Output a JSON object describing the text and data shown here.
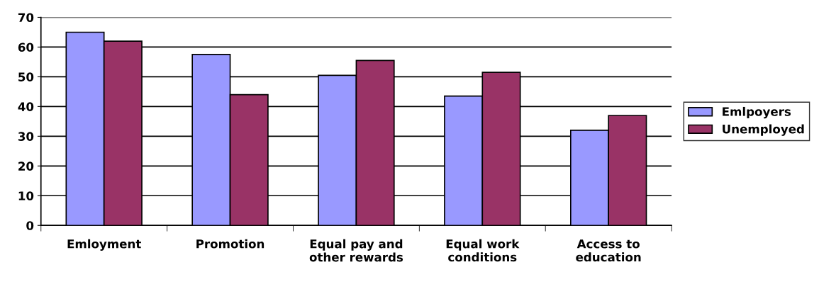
{
  "chart_data": {
    "type": "bar",
    "categories": [
      "Emloyment",
      "Promotion",
      "Equal pay and\nother rewards",
      "Equal work\nconditions",
      "Access to\neducation"
    ],
    "series": [
      {
        "name": "Emlpoyers",
        "color": "#9999ff",
        "values": [
          65,
          57.5,
          50.5,
          43.5,
          32
        ]
      },
      {
        "name": "Unemployed",
        "color": "#993366",
        "values": [
          62,
          44,
          55.5,
          51.5,
          37
        ]
      }
    ],
    "ylim": [
      0,
      70
    ],
    "yticks": [
      0,
      10,
      20,
      30,
      40,
      50,
      60,
      70
    ],
    "grid": "y",
    "legend": "right"
  }
}
